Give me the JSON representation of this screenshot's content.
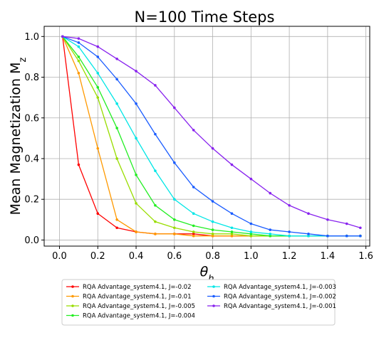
{
  "chart_data": {
    "type": "line",
    "title": "N=100 Time Steps",
    "xlabel": "θ_h",
    "ylabel": "Mean Magnetization M_z",
    "xlim": [
      -0.08,
      1.62
    ],
    "ylim": [
      -0.03,
      1.05
    ],
    "xticks": [
      "0.0",
      "0.2",
      "0.4",
      "0.6",
      "0.8",
      "1.0",
      "1.2",
      "1.4",
      "1.6"
    ],
    "yticks": [
      "0.0",
      "0.2",
      "0.4",
      "0.6",
      "0.8",
      "1.0"
    ],
    "grid": true,
    "legend_position": "below",
    "x": [
      0.016,
      0.1,
      0.2,
      0.3,
      0.4,
      0.5,
      0.6,
      0.7,
      0.8,
      0.9,
      1.0,
      1.1,
      1.2,
      1.3,
      1.4,
      1.5,
      1.571
    ],
    "series": [
      {
        "name": "RQA Advantage_system4.1, J=-0.02",
        "color": "#ff0000",
        "values": [
          1.0,
          0.37,
          0.13,
          0.06,
          0.04,
          0.03,
          0.03,
          0.03,
          0.02,
          0.02,
          0.02,
          0.02,
          0.02,
          0.02,
          0.02,
          0.02,
          0.02
        ]
      },
      {
        "name": "RQA Advantage_system4.1, J=-0.01",
        "color": "#ff9900",
        "values": [
          1.0,
          0.82,
          0.45,
          0.1,
          0.04,
          0.03,
          0.03,
          0.02,
          0.02,
          0.02,
          0.02,
          0.02,
          0.02,
          0.02,
          0.02,
          0.02,
          0.02
        ]
      },
      {
        "name": "RQA Advantage_system4.1, J=-0.005",
        "color": "#99dd00",
        "values": [
          1.0,
          0.88,
          0.7,
          0.4,
          0.18,
          0.09,
          0.06,
          0.04,
          0.03,
          0.03,
          0.02,
          0.02,
          0.02,
          0.02,
          0.02,
          0.02,
          0.02
        ]
      },
      {
        "name": "RQA Advantage_system4.1, J=-0.004",
        "color": "#22ee22",
        "values": [
          1.0,
          0.9,
          0.75,
          0.55,
          0.32,
          0.17,
          0.1,
          0.07,
          0.05,
          0.04,
          0.03,
          0.02,
          0.02,
          0.02,
          0.02,
          0.02,
          0.02
        ]
      },
      {
        "name": "RQA Advantage_system4.1, J=-0.003",
        "color": "#00e6e6",
        "values": [
          1.0,
          0.95,
          0.82,
          0.67,
          0.5,
          0.34,
          0.2,
          0.13,
          0.09,
          0.06,
          0.04,
          0.03,
          0.02,
          0.02,
          0.02,
          0.02,
          0.02
        ]
      },
      {
        "name": "RQA Advantage_system4.1, J=-0.002",
        "color": "#1a5cff",
        "values": [
          1.0,
          0.97,
          0.9,
          0.79,
          0.67,
          0.52,
          0.38,
          0.26,
          0.19,
          0.13,
          0.08,
          0.05,
          0.04,
          0.03,
          0.02,
          0.02,
          0.02
        ]
      },
      {
        "name": "RQA Advantage_system4.1, J=-0.001",
        "color": "#8822ee",
        "values": [
          1.0,
          0.99,
          0.95,
          0.89,
          0.83,
          0.76,
          0.65,
          0.54,
          0.45,
          0.37,
          0.3,
          0.23,
          0.17,
          0.13,
          0.1,
          0.08,
          0.06
        ]
      }
    ]
  }
}
